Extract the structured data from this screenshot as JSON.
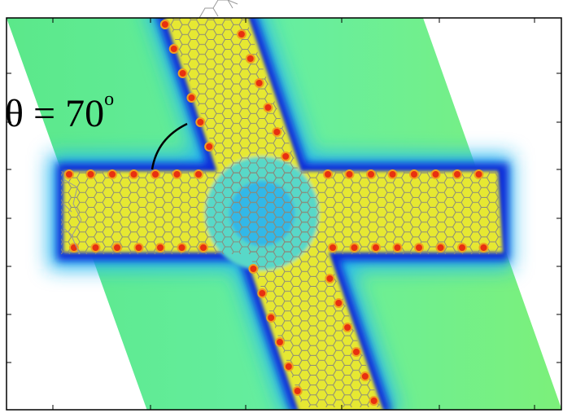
{
  "annotation": {
    "text": "θ = 70",
    "superscript": "o"
  }
}
